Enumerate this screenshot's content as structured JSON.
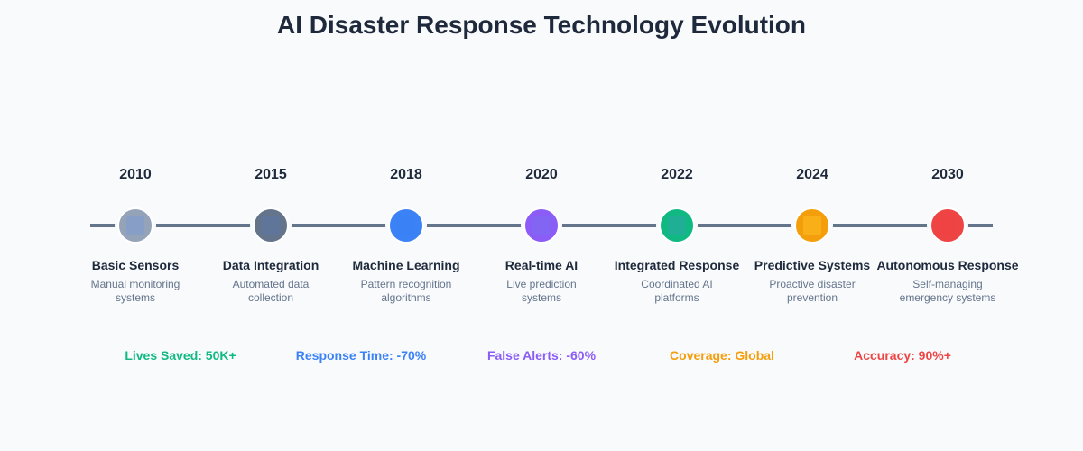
{
  "title": "AI Disaster Response Technology Evolution",
  "milestones": [
    {
      "year": "2010",
      "label": "Basic Sensors",
      "desc_line1": "Manual monitoring",
      "desc_line2": "systems",
      "color": "#94a3b8",
      "icon": "sensor-icon",
      "icon_color": "#7b9ad1"
    },
    {
      "year": "2015",
      "label": "Data Integration",
      "desc_line1": "Automated data",
      "desc_line2": "collection",
      "color": "#64748b",
      "icon": "database-icon",
      "icon_color": "#5b76a8"
    },
    {
      "year": "2018",
      "label": "Machine Learning",
      "desc_line1": "Pattern recognition",
      "desc_line2": "algorithms",
      "color": "#3b82f6",
      "icon": "brain-icon",
      "icon_color": "#3b82f6"
    },
    {
      "year": "2020",
      "label": "Real-time AI",
      "desc_line1": "Live prediction",
      "desc_line2": "systems",
      "color": "#8b5cf6",
      "icon": "lightning-icon",
      "icon_color": "#7c6ef0"
    },
    {
      "year": "2022",
      "label": "Integrated Response",
      "desc_line1": "Coordinated AI",
      "desc_line2": "platforms",
      "color": "#10b981",
      "icon": "network-icon",
      "icon_color": "#2aa7a5"
    },
    {
      "year": "2024",
      "label": "Predictive Systems",
      "desc_line1": "Proactive disaster",
      "desc_line2": "prevention",
      "color": "#f59e0b",
      "icon": "forecast-icon",
      "icon_color": "#fbbf24"
    },
    {
      "year": "2030",
      "label": "Autonomous Response",
      "desc_line1": "Self-managing",
      "desc_line2": "emergency systems",
      "color": "#ef4444",
      "icon": "robot-icon",
      "icon_color": "#ef4444"
    }
  ],
  "metrics": [
    {
      "text": "Lives Saved: 50K+",
      "color": "#10b981"
    },
    {
      "text": "Response Time: -70%",
      "color": "#3b82f6"
    },
    {
      "text": "False Alerts: -60%",
      "color": "#8b5cf6"
    },
    {
      "text": "Coverage: Global",
      "color": "#f59e0b"
    },
    {
      "text": "Accuracy: 90%+",
      "color": "#ef4444"
    }
  ],
  "colors": {
    "background": "#f8fafc",
    "timeline": "#64748b",
    "text_primary": "#1e293b",
    "text_secondary": "#64748b"
  }
}
